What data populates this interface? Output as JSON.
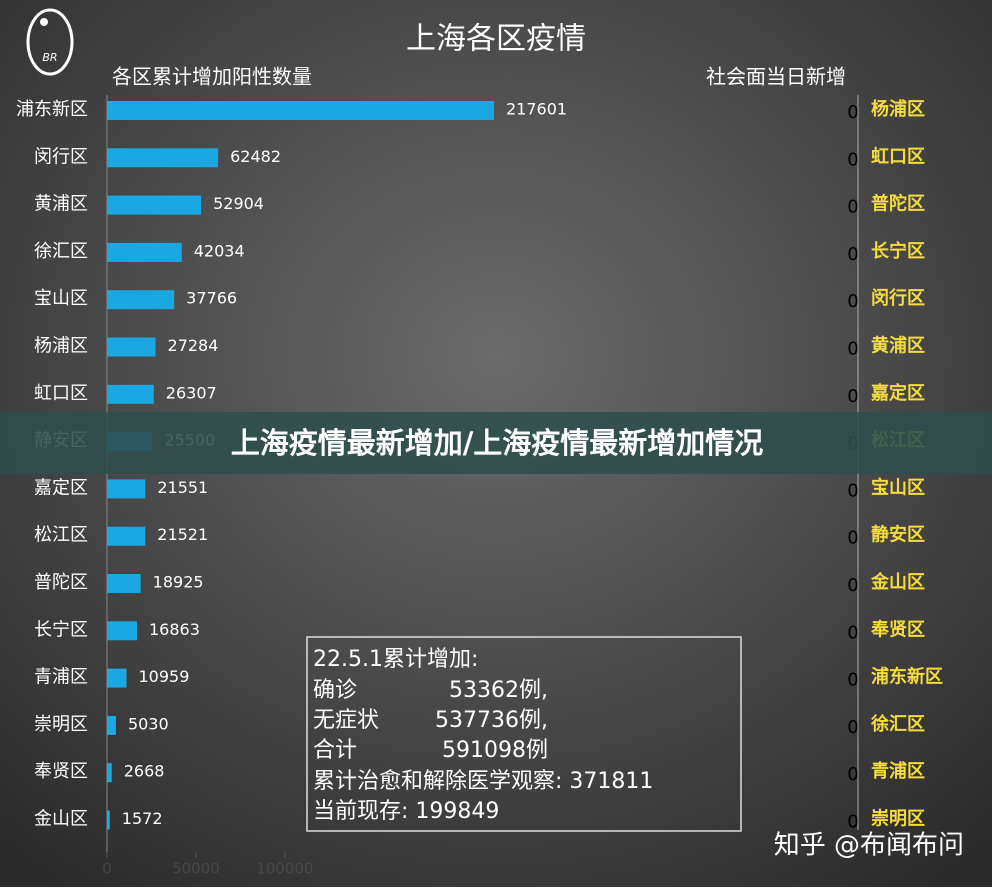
{
  "chart_data": {
    "type": "bar",
    "orientation": "horizontal",
    "title": "上海各区疫情",
    "subtitle": "各区累计增加阳性数量",
    "categories": [
      "浦东新区",
      "闵行区",
      "黄浦区",
      "徐汇区",
      "宝山区",
      "杨浦区",
      "虹口区",
      "静安区",
      "嘉定区",
      "松江区",
      "普陀区",
      "长宁区",
      "青浦区",
      "崇明区",
      "奉贤区",
      "金山区"
    ],
    "values": [
      217601,
      62482,
      52904,
      42034,
      37766,
      27284,
      26307,
      25500,
      21551,
      21521,
      18925,
      16863,
      10959,
      5030,
      2668,
      1572
    ],
    "color": "#1ba8e2",
    "xlim": [
      0,
      250000
    ],
    "xticks": [
      0,
      50000,
      100000
    ],
    "grid": false,
    "right_panel": {
      "title": "社会面当日新增",
      "categories": [
        "杨浦区",
        "虹口区",
        "普陀区",
        "长宁区",
        "闵行区",
        "黄浦区",
        "嘉定区",
        "松江区",
        "宝山区",
        "静安区",
        "金山区",
        "奉贤区",
        "浦东新区",
        "徐汇区",
        "青浦区",
        "崇明区"
      ],
      "values": [
        0,
        0,
        0,
        0,
        0,
        0,
        0,
        0,
        0,
        0,
        0,
        0,
        0,
        0,
        0,
        0
      ]
    },
    "summary": {
      "heading": "22.5.1累计增加:",
      "rows": [
        [
          "确诊",
          "53362例,"
        ],
        [
          "无症状",
          "537736例,"
        ],
        [
          "合计",
          "591098例"
        ]
      ],
      "lines": [
        "累计治愈和解除医学观察: 371811",
        "当前现存: 199849"
      ]
    }
  },
  "banner": "上海疫情最新增加/上海疫情最新增加情况",
  "watermark": "知乎 @布闻布问",
  "logo": "BR"
}
